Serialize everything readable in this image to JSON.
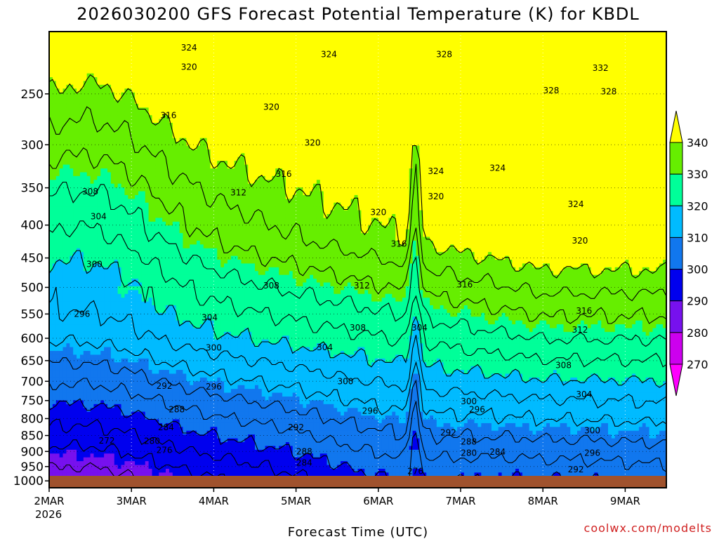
{
  "chart_data": {
    "type": "filled-contour",
    "title": "2026030200 GFS Forecast Potential Temperature (K) for KBDL",
    "xlabel": "Forecast Time (UTC)",
    "ylabel": "",
    "credit": "coolwx.com/modelts",
    "x_ticks": [
      "2MAR",
      "3MAR",
      "4MAR",
      "5MAR",
      "6MAR",
      "7MAR",
      "8MAR",
      "9MAR"
    ],
    "x_year": "2026",
    "x_range_days": [
      0,
      7.5
    ],
    "y_ticks": [
      250,
      300,
      350,
      400,
      450,
      500,
      550,
      600,
      650,
      700,
      750,
      800,
      850,
      900,
      950,
      1000
    ],
    "y_range_hpa": [
      200,
      1025
    ],
    "colorbar": {
      "levels": [
        270,
        280,
        290,
        300,
        310,
        320,
        330,
        340
      ],
      "colors": [
        "#ff00ff",
        "#cc00ee",
        "#7711ee",
        "#0000ee",
        "#1177ee",
        "#00bbff",
        "#00ff99",
        "#66ee00",
        "#ffff00"
      ]
    },
    "contour_interval_k": 4,
    "contour_labels": [
      {
        "value": "324",
        "day": 1.7,
        "p": 212
      },
      {
        "value": "324",
        "day": 3.4,
        "p": 217
      },
      {
        "value": "328",
        "day": 4.8,
        "p": 217
      },
      {
        "value": "332",
        "day": 6.7,
        "p": 228
      },
      {
        "value": "320",
        "day": 1.7,
        "p": 227
      },
      {
        "value": "320",
        "day": 2.7,
        "p": 262
      },
      {
        "value": "328",
        "day": 6.1,
        "p": 247
      },
      {
        "value": "328",
        "day": 6.8,
        "p": 248
      },
      {
        "value": "316",
        "day": 1.45,
        "p": 270
      },
      {
        "value": "320",
        "day": 3.2,
        "p": 298
      },
      {
        "value": "324",
        "day": 4.7,
        "p": 330
      },
      {
        "value": "324",
        "day": 5.45,
        "p": 326
      },
      {
        "value": "316",
        "day": 2.85,
        "p": 333
      },
      {
        "value": "308",
        "day": 0.5,
        "p": 355
      },
      {
        "value": "312",
        "day": 2.3,
        "p": 356
      },
      {
        "value": "320",
        "day": 4.7,
        "p": 361
      },
      {
        "value": "324",
        "day": 6.4,
        "p": 371
      },
      {
        "value": "304",
        "day": 0.6,
        "p": 388
      },
      {
        "value": "320",
        "day": 4.0,
        "p": 382
      },
      {
        "value": "316",
        "day": 4.25,
        "p": 428
      },
      {
        "value": "320",
        "day": 6.45,
        "p": 423
      },
      {
        "value": "300",
        "day": 0.55,
        "p": 460
      },
      {
        "value": "308",
        "day": 2.7,
        "p": 497
      },
      {
        "value": "312",
        "day": 3.8,
        "p": 497
      },
      {
        "value": "316",
        "day": 5.05,
        "p": 495
      },
      {
        "value": "296",
        "day": 0.4,
        "p": 550
      },
      {
        "value": "304",
        "day": 1.95,
        "p": 557
      },
      {
        "value": "308",
        "day": 3.75,
        "p": 578
      },
      {
        "value": "304",
        "day": 4.5,
        "p": 578
      },
      {
        "value": "316",
        "day": 6.5,
        "p": 544
      },
      {
        "value": "312",
        "day": 6.45,
        "p": 582
      },
      {
        "value": "300",
        "day": 2.0,
        "p": 621
      },
      {
        "value": "304",
        "day": 3.35,
        "p": 620
      },
      {
        "value": "308",
        "day": 6.25,
        "p": 661
      },
      {
        "value": "300",
        "day": 3.6,
        "p": 700
      },
      {
        "value": "292",
        "day": 1.4,
        "p": 712
      },
      {
        "value": "296",
        "day": 2.0,
        "p": 714
      },
      {
        "value": "304",
        "day": 6.5,
        "p": 734
      },
      {
        "value": "300",
        "day": 5.1,
        "p": 752
      },
      {
        "value": "288",
        "day": 1.55,
        "p": 774
      },
      {
        "value": "296",
        "day": 3.9,
        "p": 778
      },
      {
        "value": "296",
        "day": 5.2,
        "p": 774
      },
      {
        "value": "284",
        "day": 1.42,
        "p": 826
      },
      {
        "value": "292",
        "day": 3.0,
        "p": 826
      },
      {
        "value": "292",
        "day": 4.85,
        "p": 841
      },
      {
        "value": "300",
        "day": 6.6,
        "p": 835
      },
      {
        "value": "272",
        "day": 0.7,
        "p": 866
      },
      {
        "value": "280",
        "day": 1.25,
        "p": 867
      },
      {
        "value": "288",
        "day": 5.1,
        "p": 869
      },
      {
        "value": "276",
        "day": 1.4,
        "p": 896
      },
      {
        "value": "288",
        "day": 3.1,
        "p": 900
      },
      {
        "value": "280",
        "day": 5.1,
        "p": 905
      },
      {
        "value": "284",
        "day": 5.45,
        "p": 902
      },
      {
        "value": "296",
        "day": 6.6,
        "p": 905
      },
      {
        "value": "284",
        "day": 3.1,
        "p": 938
      },
      {
        "value": "292",
        "day": 6.4,
        "p": 960
      },
      {
        "value": "276",
        "day": 4.45,
        "p": 966
      }
    ]
  }
}
